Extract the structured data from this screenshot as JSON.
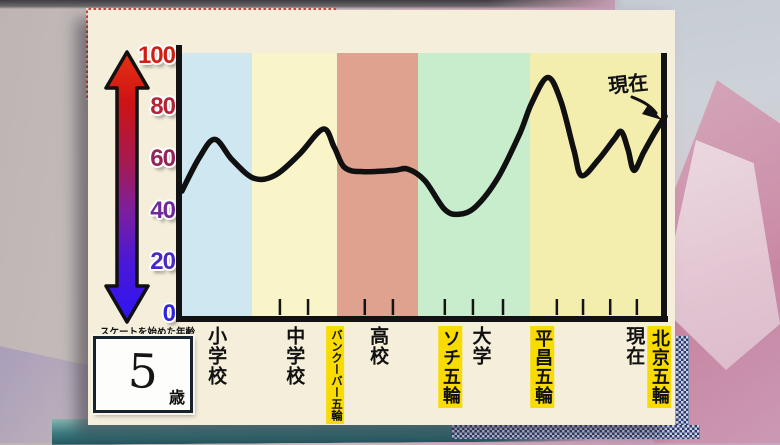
{
  "age_box": {
    "caption": "スケートを始めた年齢",
    "value": "5",
    "unit": "歳"
  },
  "chart_data": {
    "type": "line",
    "ylim": [
      0,
      100
    ],
    "grid": false,
    "legend": "none",
    "y_axis": {
      "ticks": [
        {
          "label": "100",
          "value": 100,
          "color": "#cf1f15"
        },
        {
          "label": "80",
          "value": 80,
          "color": "#b52336"
        },
        {
          "label": "60",
          "value": 60,
          "color": "#952359"
        },
        {
          "label": "40",
          "value": 40,
          "color": "#6f2a9a"
        },
        {
          "label": "20",
          "value": 20,
          "color": "#4b28c0"
        },
        {
          "label": "0",
          "value": 0,
          "color": "#3024dd"
        }
      ]
    },
    "x_axis": {
      "labels": [
        {
          "text": "小学校",
          "x": 0.072,
          "highlight": false,
          "small": false
        },
        {
          "text": "中学校",
          "x": 0.233,
          "highlight": false,
          "small": false
        },
        {
          "text": "バンクーバー五輪",
          "x": 0.32,
          "highlight": true,
          "small": true
        },
        {
          "text": "高校",
          "x": 0.406,
          "highlight": false,
          "small": false
        },
        {
          "text": "ソチ五輪",
          "x": 0.557,
          "highlight": true,
          "small": false
        },
        {
          "text": "大学",
          "x": 0.617,
          "highlight": false,
          "small": false
        },
        {
          "text": "平昌五輪",
          "x": 0.747,
          "highlight": true,
          "small": false
        },
        {
          "text": "現在",
          "x": 0.934,
          "highlight": false,
          "small": false
        },
        {
          "text": "北京五輪",
          "x": 0.988,
          "highlight": true,
          "small": false
        }
      ],
      "minor_ticks": [
        0.206,
        0.264,
        0.381,
        0.439,
        0.546,
        0.604,
        0.666,
        0.777,
        0.831,
        0.887,
        0.942
      ]
    },
    "bands": [
      {
        "color": "#cfe7f1",
        "from": 0,
        "to": 0.149
      },
      {
        "color": "#f9f5c9",
        "from": 0.149,
        "to": 0.324
      },
      {
        "color": "#dfa28e",
        "from": 0.324,
        "to": 0.491
      },
      {
        "color": "#c8edcc",
        "from": 0.491,
        "to": 0.722
      },
      {
        "color": "#f3edae",
        "from": 0.722,
        "to": 1
      }
    ],
    "annotation": {
      "text": "現在"
    },
    "series": [
      {
        "name": "hand-drawn-line",
        "points": [
          [
            0.004,
            48
          ],
          [
            0.04,
            61
          ],
          [
            0.072,
            68
          ],
          [
            0.108,
            60
          ],
          [
            0.152,
            53
          ],
          [
            0.195,
            54
          ],
          [
            0.245,
            62
          ],
          [
            0.295,
            72
          ],
          [
            0.318,
            65
          ],
          [
            0.34,
            57
          ],
          [
            0.38,
            55.5
          ],
          [
            0.44,
            56
          ],
          [
            0.47,
            56.5
          ],
          [
            0.505,
            52
          ],
          [
            0.545,
            41
          ],
          [
            0.575,
            39
          ],
          [
            0.61,
            42
          ],
          [
            0.655,
            53
          ],
          [
            0.7,
            70
          ],
          [
            0.725,
            82
          ],
          [
            0.758,
            92
          ],
          [
            0.785,
            83
          ],
          [
            0.812,
            64
          ],
          [
            0.828,
            54
          ],
          [
            0.862,
            60
          ],
          [
            0.895,
            68
          ],
          [
            0.91,
            71
          ],
          [
            0.924,
            64
          ],
          [
            0.936,
            56
          ],
          [
            0.956,
            63
          ],
          [
            0.98,
            71
          ],
          [
            1.0,
            77
          ]
        ]
      }
    ]
  },
  "colors": {
    "card_bg": "#f4eedb",
    "highlight_yellow": "#f8dc00",
    "arrow_top": "#e23312",
    "arrow_bottom": "#3414f0",
    "checker_red": "#c94a42",
    "checker_navy": "#2c3a72",
    "line_color": "#101010"
  }
}
